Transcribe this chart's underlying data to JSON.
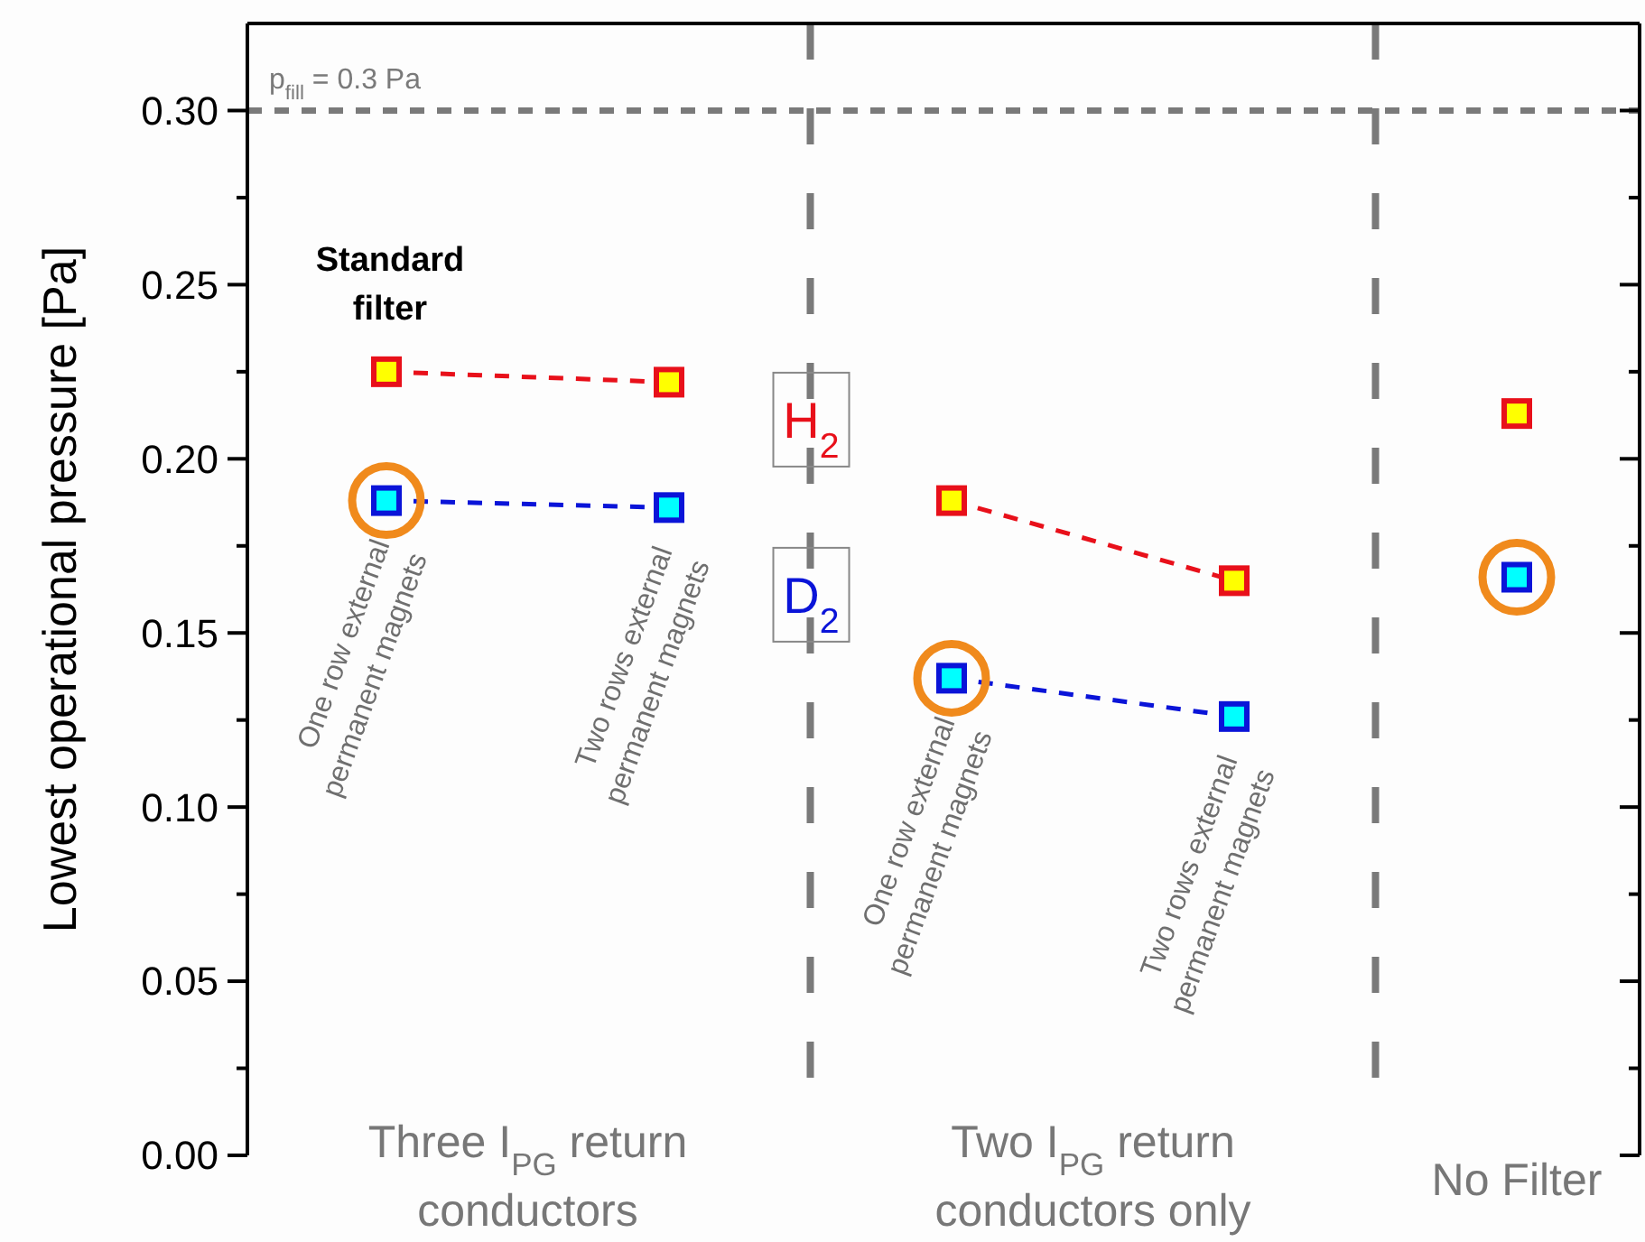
{
  "chart_data": {
    "type": "line",
    "ylabel": "Lowest operational pressure [Pa]",
    "categories": [
      null,
      null,
      null,
      null,
      null
    ],
    "ylim": [
      0,
      0.325
    ],
    "yticks": [
      {
        "value": 0,
        "label": "0.00"
      },
      {
        "value": 0.025,
        "label": null
      },
      {
        "value": 0.05,
        "label": "0.05"
      },
      {
        "value": 0.075,
        "label": null
      },
      {
        "value": 0.1,
        "label": "0.10"
      },
      {
        "value": 0.125,
        "label": null
      },
      {
        "value": 0.15,
        "label": "0.15"
      },
      {
        "value": 0.175,
        "label": null
      },
      {
        "value": 0.2,
        "label": "0.20"
      },
      {
        "value": 0.225,
        "label": null
      },
      {
        "value": 0.25,
        "label": "0.25"
      },
      {
        "value": 0.275,
        "label": null
      },
      {
        "value": 0.3,
        "label": "0.30"
      }
    ],
    "tick_labels": "y",
    "grid": false,
    "legend": "center",
    "line_style": "dashed",
    "marker": "square",
    "series": [
      {
        "name": "H$_{2}$",
        "color": "#e8101a",
        "values": [
          0.225,
          0.222,
          null,
          null,
          null
        ]
      },
      {
        "color": "#e8101a",
        "values": [
          null,
          null,
          0.188,
          0.165,
          null
        ]
      },
      {
        "color": "#e8101a",
        "values": [
          null,
          null,
          null,
          null,
          0.213
        ]
      },
      {
        "name": "D$_{2}$",
        "color": "#0a14d8",
        "values": [
          0.188,
          0.186,
          null,
          null,
          null
        ]
      },
      {
        "color": "#0a14d8",
        "values": [
          null,
          null,
          0.137,
          0.126,
          null
        ]
      },
      {
        "color": "#0a14d8",
        "values": [
          null,
          null,
          null,
          null,
          0.166
        ]
      },
      {
        "type": "scatter",
        "marker": "circle",
        "color": "#f08a1c",
        "values": [
          0.188,
          null,
          0.137,
          null,
          0.166
        ]
      }
    ],
    "ref_lines": [
      {
        "axis": "y",
        "value": 0.3,
        "label": "p$_{fill}$ = 0.3 Pa",
        "color": "#7a7a7a",
        "line_style": "dashed"
      }
    ],
    "annotations": [
      "Standard\nfilter",
      "One row external\npermanent magnets",
      "Two rows external\npermanent magnets",
      "One row external\npermanent magnets",
      "Two rows external\npermanent magnets",
      "Three I$_{PG}$ return\nconductors",
      "Two I$_{PG}$ return\nconductors only",
      "No Filter"
    ]
  }
}
